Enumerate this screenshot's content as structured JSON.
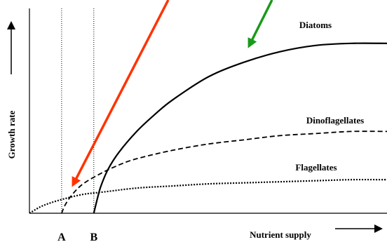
{
  "chart_data": {
    "type": "line",
    "xlabel": "Nutrient supply",
    "ylabel": "Growth rate",
    "x_markers": [
      {
        "label": "A",
        "x": 0.9
      },
      {
        "label": "B",
        "x": 1.8
      }
    ],
    "xlim": [
      0,
      10
    ],
    "ylim": [
      0,
      1
    ],
    "grid": false,
    "series": [
      {
        "name": "Diatoms",
        "style": "solid",
        "color": "#000000",
        "x": [
          1.8,
          1.9,
          2.0,
          2.2,
          2.5,
          3.0,
          3.5,
          4.0,
          5.0,
          6.0,
          7.0,
          8.0,
          9.0,
          10.0
        ],
        "y": [
          0.0,
          0.07,
          0.13,
          0.21,
          0.29,
          0.39,
          0.47,
          0.54,
          0.65,
          0.72,
          0.77,
          0.8,
          0.81,
          0.81
        ]
      },
      {
        "name": "Dinoflagellates",
        "style": "dashed",
        "color": "#000000",
        "x": [
          0.9,
          1.0,
          1.2,
          1.5,
          2.0,
          2.5,
          3.0,
          4.0,
          5.0,
          6.0,
          7.0,
          8.0,
          9.0,
          10.0
        ],
        "y": [
          0.0,
          0.04,
          0.09,
          0.14,
          0.19,
          0.23,
          0.26,
          0.3,
          0.33,
          0.35,
          0.37,
          0.38,
          0.39,
          0.39
        ]
      },
      {
        "name": "Flagellates",
        "style": "dotted",
        "color": "#000000",
        "x": [
          0.0,
          0.3,
          0.6,
          1.0,
          1.5,
          2.0,
          3.0,
          4.0,
          5.0,
          6.0,
          7.0,
          8.0,
          9.0,
          10.0
        ],
        "y": [
          0.0,
          0.03,
          0.05,
          0.07,
          0.09,
          0.1,
          0.12,
          0.13,
          0.14,
          0.145,
          0.15,
          0.155,
          0.16,
          0.16
        ]
      }
    ],
    "annotations": [
      {
        "type": "arrow",
        "color": "#ff3300",
        "points_to": "Dinoflagellates near A"
      },
      {
        "type": "arrow",
        "color": "#1a9a1a",
        "points_to": "Diatoms"
      }
    ],
    "legend": "labels placed next to curves"
  }
}
